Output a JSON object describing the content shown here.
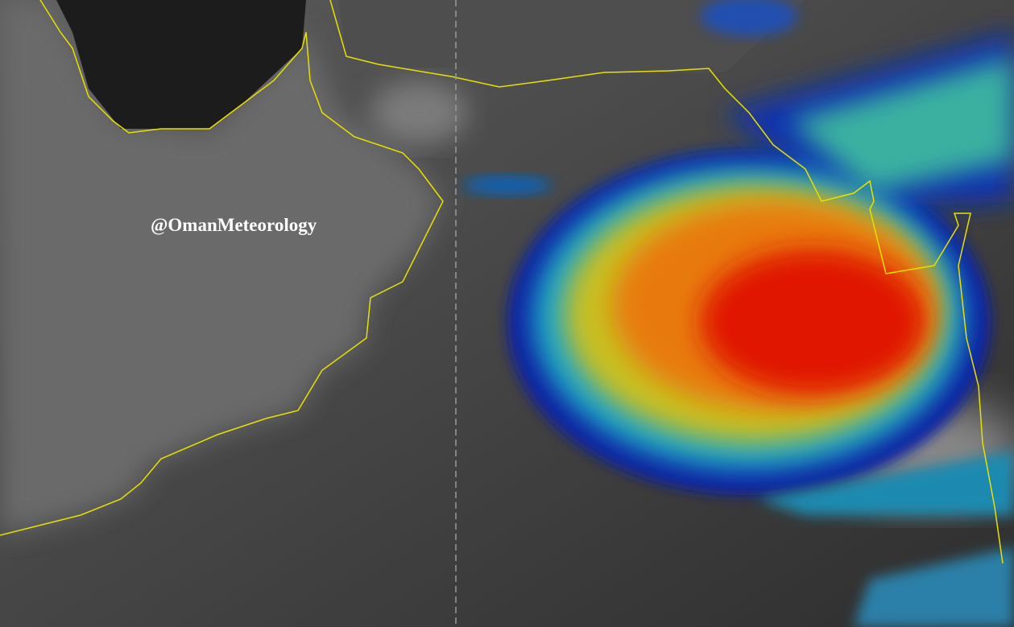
{
  "watermark": "@OmanMeteorology"
}
